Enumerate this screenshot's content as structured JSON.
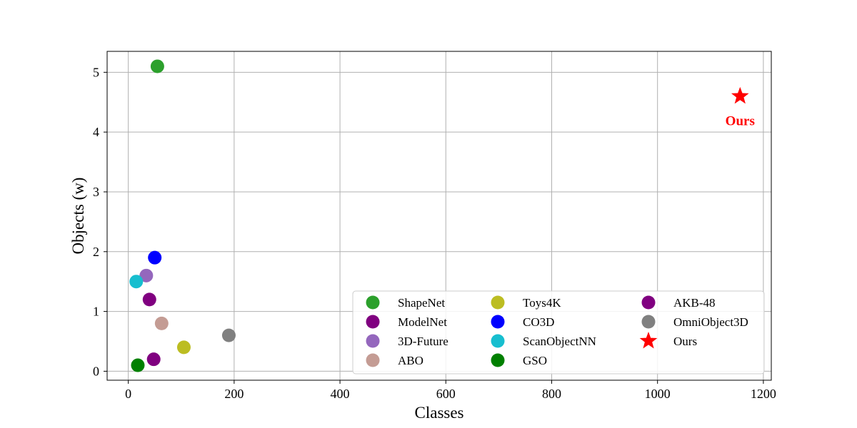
{
  "chart_data": {
    "type": "scatter",
    "xlabel": "Classes",
    "ylabel": "Objects (w)",
    "xlim": [
      -40,
      1215
    ],
    "ylim": [
      -0.15,
      5.35
    ],
    "xticks": [
      0,
      200,
      400,
      600,
      800,
      1000,
      1200
    ],
    "yticks": [
      0,
      1,
      2,
      3,
      4,
      5
    ],
    "grid": true,
    "legend_position": "bottom-right",
    "legend_columns": 3,
    "series": [
      {
        "name": "ShapeNet",
        "x": 55,
        "y": 5.1,
        "color": "#2ca02c",
        "marker": "circle"
      },
      {
        "name": "ModelNet",
        "x": 40,
        "y": 1.2,
        "color": "#800080",
        "marker": "circle"
      },
      {
        "name": "3D-Future",
        "x": 34,
        "y": 1.6,
        "color": "#9467bd",
        "marker": "circle"
      },
      {
        "name": "ABO",
        "x": 63,
        "y": 0.8,
        "color": "#c49c94",
        "marker": "circle"
      },
      {
        "name": "Toys4K",
        "x": 105,
        "y": 0.4,
        "color": "#bcbd22",
        "marker": "circle"
      },
      {
        "name": "CO3D",
        "x": 50,
        "y": 1.9,
        "color": "#0000ff",
        "marker": "circle"
      },
      {
        "name": "ScanObjectNN",
        "x": 15,
        "y": 1.5,
        "color": "#17becf",
        "marker": "circle"
      },
      {
        "name": "GSO",
        "x": 18,
        "y": 0.1,
        "color": "#008000",
        "marker": "circle"
      },
      {
        "name": "AKB-48",
        "x": 48,
        "y": 0.2,
        "color": "#800080",
        "marker": "circle"
      },
      {
        "name": "OmniObject3D",
        "x": 190,
        "y": 0.6,
        "color": "#808080",
        "marker": "circle"
      },
      {
        "name": "Ours",
        "x": 1156,
        "y": 4.6,
        "color": "#ff0000",
        "marker": "star"
      }
    ],
    "annotations": [
      {
        "text": "Ours",
        "x": 1156,
        "y": 4.2,
        "color": "#ff0000"
      }
    ]
  }
}
